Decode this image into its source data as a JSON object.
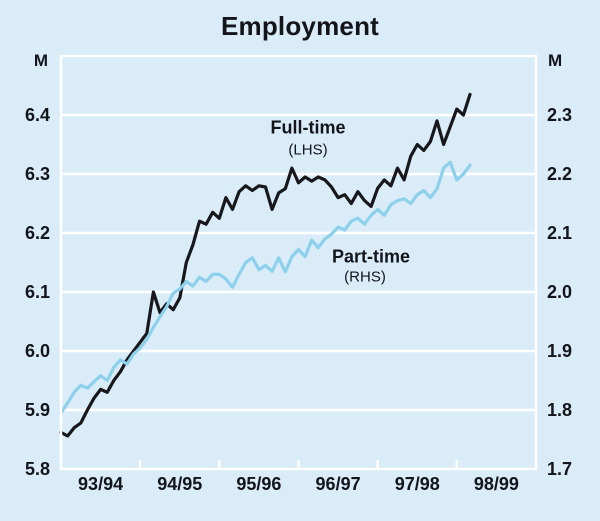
{
  "title": "Employment",
  "left_axis": {
    "unit": "M",
    "ticks": [
      "6.4",
      "6.3",
      "6.2",
      "6.1",
      "6.0",
      "5.9",
      "5.8"
    ],
    "min": 5.8,
    "max": 6.5
  },
  "right_axis": {
    "unit": "M",
    "ticks": [
      "2.3",
      "2.2",
      "2.1",
      "2.0",
      "1.9",
      "1.8",
      "1.7"
    ],
    "min": 1.7,
    "max": 2.4
  },
  "x_axis": {
    "labels": [
      "93/94",
      "94/95",
      "95/96",
      "96/97",
      "97/98",
      "98/99"
    ]
  },
  "annotations": {
    "fulltime_label": "Full-time",
    "fulltime_sub": "(LHS)",
    "parttime_label": "Part-time",
    "parttime_sub": "(RHS)"
  },
  "colors": {
    "background": "#daecf8",
    "grid": "#ffffff",
    "text": "#14141b",
    "fulltime_line": "#17171c",
    "parttime_line": "#8dd0ec"
  },
  "chart_data": {
    "type": "line",
    "title": "Employment",
    "x_tick_labels": [
      "93/94",
      "94/95",
      "95/96",
      "96/97",
      "97/98",
      "98/99"
    ],
    "points_per_year": 12,
    "grid": "on",
    "lhs_range": [
      5.8,
      6.5
    ],
    "rhs_range": [
      1.7,
      2.4
    ],
    "series": [
      {
        "name": "Full-time",
        "axis": "LHS",
        "unit": "M",
        "color": "#17171c",
        "values": [
          5.862,
          5.856,
          5.87,
          5.878,
          5.9,
          5.92,
          5.935,
          5.93,
          5.95,
          5.965,
          5.985,
          6.0,
          6.015,
          6.03,
          6.1,
          6.065,
          6.08,
          6.07,
          6.09,
          6.15,
          6.18,
          6.22,
          6.215,
          6.235,
          6.225,
          6.26,
          6.24,
          6.27,
          6.28,
          6.272,
          6.28,
          6.278,
          6.24,
          6.268,
          6.275,
          6.31,
          6.285,
          6.295,
          6.288,
          6.295,
          6.29,
          6.278,
          6.26,
          6.265,
          6.25,
          6.27,
          6.255,
          6.245,
          6.276,
          6.29,
          6.28,
          6.31,
          6.29,
          6.33,
          6.35,
          6.34,
          6.355,
          6.39,
          6.35,
          6.38,
          6.41,
          6.4,
          6.435
        ]
      },
      {
        "name": "Part-time",
        "axis": "RHS",
        "unit": "M",
        "color": "#8dd0ec",
        "values": [
          1.795,
          1.812,
          1.83,
          1.842,
          1.837,
          1.848,
          1.858,
          1.85,
          1.872,
          1.885,
          1.878,
          1.895,
          1.905,
          1.92,
          1.94,
          1.958,
          1.975,
          1.998,
          2.005,
          2.018,
          2.01,
          2.025,
          2.018,
          2.03,
          2.03,
          2.022,
          2.008,
          2.03,
          2.05,
          2.058,
          2.038,
          2.045,
          2.035,
          2.058,
          2.034,
          2.06,
          2.072,
          2.06,
          2.088,
          2.075,
          2.09,
          2.098,
          2.11,
          2.105,
          2.12,
          2.125,
          2.115,
          2.13,
          2.14,
          2.13,
          2.148,
          2.155,
          2.158,
          2.15,
          2.165,
          2.172,
          2.16,
          2.175,
          2.21,
          2.22,
          2.19,
          2.2,
          2.215
        ]
      }
    ]
  }
}
